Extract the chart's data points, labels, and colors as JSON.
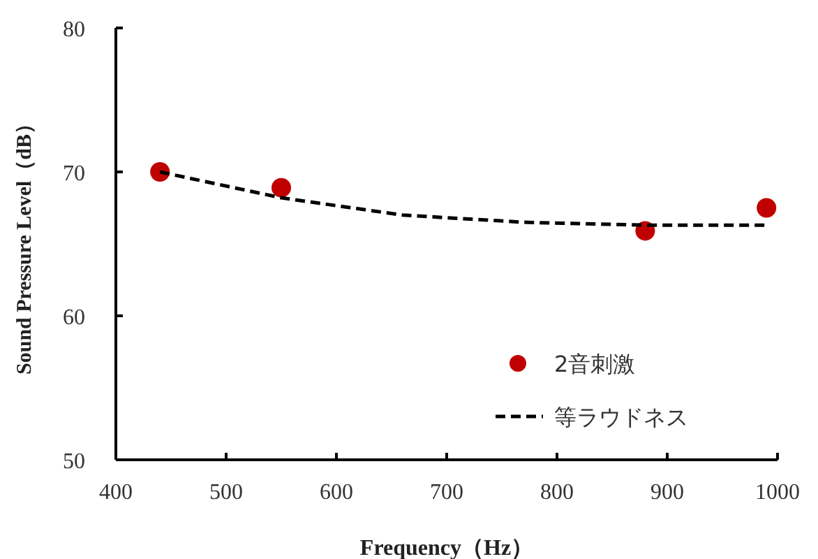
{
  "chart_data": {
    "type": "scatter",
    "xlabel": "Frequency（Hz）",
    "ylabel": "Sound Pressure Level（dB）",
    "xlim": [
      400,
      1000
    ],
    "xticks": [
      400,
      500,
      600,
      700,
      800,
      900,
      1000
    ],
    "ylim": [
      50,
      80
    ],
    "yticks": [
      50,
      60,
      70,
      80
    ],
    "grid": false,
    "legend": "bottom right",
    "series": [
      {
        "name": "2音刺激",
        "marker": "circle",
        "color": "#c00000",
        "x": [
          440,
          550,
          880,
          990
        ],
        "values": [
          70.0,
          68.9,
          65.9,
          67.5
        ]
      },
      {
        "name": "等ラウドネス",
        "type": "line",
        "marker": "none",
        "line_style": "dashed",
        "color": "#000000",
        "x": [
          440,
          550,
          660,
          770,
          880,
          990
        ],
        "values": [
          70.0,
          68.2,
          67.0,
          66.5,
          66.3,
          66.3
        ]
      }
    ]
  }
}
